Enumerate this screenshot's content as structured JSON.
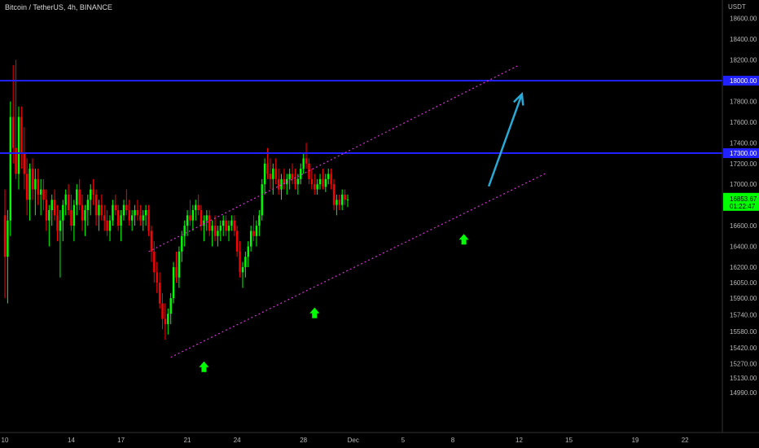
{
  "header": {
    "title": "Bitcoin / TetherUS, 4h, BINANCE"
  },
  "currency_label": "USDT",
  "chart_data": {
    "type": "candlestick",
    "title": "Bitcoin / TetherUS, 4h, BINANCE",
    "y_unit": "USDT",
    "ylim": [
      14900,
      18750
    ],
    "y_ticks": [
      18600,
      18400,
      18200,
      18000,
      17800,
      17600,
      17400,
      17200,
      17000,
      16800,
      16600,
      16400,
      16200,
      16050,
      15900,
      15740,
      15580,
      15420,
      15270,
      15130,
      14990
    ],
    "y_tick_labels": [
      "18600.00",
      "18400.00",
      "18200.00",
      "18000.00",
      "17800.00",
      "17600.00",
      "17400.00",
      "17200.00",
      "17000.00",
      "16800.00",
      "16600.00",
      "16400.00",
      "16200.00",
      "16050.00",
      "15900.00",
      "15740.00",
      "15580.00",
      "15420.00",
      "15270.00",
      "15130.00",
      "14990.00"
    ],
    "x_tick_labels": [
      "10",
      "14",
      "17",
      "21",
      "24",
      "28",
      "Dec",
      "5",
      "8",
      "12",
      "15",
      "19",
      "22"
    ],
    "x_tick_index": [
      0,
      24,
      42,
      66,
      84,
      108,
      126,
      144,
      162,
      186,
      204,
      228,
      246
    ],
    "x_range": [
      0,
      252
    ],
    "horizontal_levels": [
      {
        "price": 18000,
        "label": "18000.00",
        "color": "#2121ff"
      },
      {
        "price": 17300,
        "label": "17300.00",
        "color": "#2121ff"
      }
    ],
    "last_price": {
      "value": 16853.67,
      "label": "16853.67",
      "countdown": "01:22:47",
      "color": "#00ff00"
    },
    "channel": {
      "color": "#d633d6",
      "upper": [
        [
          52,
          16350
        ],
        [
          186,
          18150
        ]
      ],
      "lower": [
        [
          60,
          15330
        ],
        [
          196,
          17110
        ]
      ]
    },
    "projection_arrow": {
      "from": [
        175,
        16980
      ],
      "to": [
        187,
        17870
      ],
      "color": "#29a9d6"
    },
    "support_markers": {
      "index": [
        72,
        112,
        166
      ],
      "price": [
        15400,
        15920,
        16630
      ],
      "color": "#00ff00"
    },
    "candle_colors": {
      "up": "#00ff00",
      "down": "#ff0000"
    },
    "candles": [
      [
        16700,
        16950,
        15900,
        16300
      ],
      [
        16300,
        16750,
        15850,
        16650
      ],
      [
        16650,
        17800,
        16500,
        17650
      ],
      [
        17650,
        18150,
        17200,
        17350
      ],
      [
        17350,
        18200,
        17050,
        17100
      ],
      [
        17100,
        17750,
        16950,
        17650
      ],
      [
        17650,
        17750,
        17150,
        17300
      ],
      [
        17300,
        17550,
        16950,
        17100
      ],
      [
        17100,
        17250,
        16700,
        16850
      ],
      [
        16850,
        17200,
        16650,
        17150
      ],
      [
        17150,
        17250,
        16850,
        16950
      ],
      [
        16950,
        17150,
        16700,
        17050
      ],
      [
        17050,
        17150,
        16800,
        16900
      ],
      [
        16900,
        17050,
        16700,
        16950
      ],
      [
        16950,
        17050,
        16750,
        16850
      ],
      [
        16850,
        16950,
        16550,
        16650
      ],
      [
        16650,
        16800,
        16400,
        16750
      ],
      [
        16750,
        16900,
        16600,
        16850
      ],
      [
        16850,
        16950,
        16650,
        16700
      ],
      [
        16700,
        16800,
        16450,
        16550
      ],
      [
        16550,
        16750,
        16100,
        16650
      ],
      [
        16650,
        16850,
        16450,
        16800
      ],
      [
        16800,
        16950,
        16700,
        16900
      ],
      [
        16900,
        17000,
        16700,
        16750
      ],
      [
        16750,
        16900,
        16550,
        16600
      ],
      [
        16600,
        16850,
        16450,
        16800
      ],
      [
        16800,
        17000,
        16700,
        16950
      ],
      [
        16950,
        17050,
        16750,
        16800
      ],
      [
        16800,
        16900,
        16550,
        16650
      ],
      [
        16650,
        16800,
        16500,
        16750
      ],
      [
        16750,
        16900,
        16600,
        16850
      ],
      [
        16850,
        17000,
        16700,
        16950
      ],
      [
        16950,
        17050,
        16800,
        16900
      ],
      [
        16900,
        16950,
        16600,
        16700
      ],
      [
        16700,
        16850,
        16550,
        16800
      ],
      [
        16800,
        16900,
        16650,
        16700
      ],
      [
        16700,
        16800,
        16550,
        16650
      ],
      [
        16650,
        16750,
        16500,
        16550
      ],
      [
        16550,
        16700,
        16450,
        16650
      ],
      [
        16650,
        16850,
        16600,
        16800
      ],
      [
        16800,
        16900,
        16700,
        16750
      ],
      [
        16750,
        16800,
        16550,
        16600
      ],
      [
        16600,
        16750,
        16450,
        16700
      ],
      [
        16700,
        16850,
        16650,
        16800
      ],
      [
        16800,
        16950,
        16700,
        16750
      ],
      [
        16750,
        16850,
        16600,
        16650
      ],
      [
        16650,
        16750,
        16550,
        16700
      ],
      [
        16700,
        16800,
        16600,
        16750
      ],
      [
        16750,
        16850,
        16650,
        16700
      ],
      [
        16700,
        16800,
        16600,
        16650
      ],
      [
        16650,
        16750,
        16550,
        16700
      ],
      [
        16700,
        16800,
        16600,
        16750
      ],
      [
        16750,
        16800,
        16500,
        16550
      ],
      [
        16550,
        16600,
        16250,
        16350
      ],
      [
        16350,
        16450,
        16050,
        16150
      ],
      [
        16150,
        16250,
        15950,
        16050
      ],
      [
        16050,
        16150,
        15800,
        15850
      ],
      [
        15850,
        15950,
        15600,
        15700
      ],
      [
        15700,
        15850,
        15500,
        15650
      ],
      [
        15650,
        15800,
        15550,
        15750
      ],
      [
        15750,
        15950,
        15650,
        15900
      ],
      [
        15900,
        16250,
        15850,
        16200
      ],
      [
        16200,
        16350,
        16050,
        16100
      ],
      [
        16100,
        16400,
        16000,
        16350
      ],
      [
        16350,
        16550,
        16250,
        16500
      ],
      [
        16500,
        16650,
        16400,
        16600
      ],
      [
        16600,
        16750,
        16500,
        16700
      ],
      [
        16700,
        16850,
        16600,
        16650
      ],
      [
        16650,
        16800,
        16550,
        16750
      ],
      [
        16750,
        16850,
        16650,
        16800
      ],
      [
        16800,
        16900,
        16700,
        16750
      ],
      [
        16750,
        16800,
        16550,
        16600
      ],
      [
        16600,
        16700,
        16450,
        16650
      ],
      [
        16650,
        16750,
        16550,
        16700
      ],
      [
        16700,
        16750,
        16500,
        16550
      ],
      [
        16550,
        16650,
        16400,
        16600
      ],
      [
        16600,
        16700,
        16450,
        16500
      ],
      [
        16500,
        16600,
        16400,
        16550
      ],
      [
        16550,
        16650,
        16450,
        16600
      ],
      [
        16600,
        16700,
        16500,
        16650
      ],
      [
        16650,
        16700,
        16500,
        16550
      ],
      [
        16550,
        16650,
        16450,
        16600
      ],
      [
        16600,
        16700,
        16550,
        16650
      ],
      [
        16650,
        16700,
        16500,
        16550
      ],
      [
        16550,
        16600,
        16300,
        16350
      ],
      [
        16350,
        16450,
        16100,
        16150
      ],
      [
        16150,
        16250,
        16000,
        16200
      ],
      [
        16200,
        16350,
        16100,
        16300
      ],
      [
        16300,
        16450,
        16200,
        16400
      ],
      [
        16400,
        16600,
        16350,
        16550
      ],
      [
        16550,
        16700,
        16450,
        16500
      ],
      [
        16500,
        16650,
        16400,
        16600
      ],
      [
        16600,
        16750,
        16500,
        16700
      ],
      [
        16700,
        17050,
        16650,
        17000
      ],
      [
        17000,
        17250,
        16900,
        17200
      ],
      [
        17200,
        17350,
        17050,
        17100
      ],
      [
        17100,
        17250,
        16950,
        17050
      ],
      [
        17050,
        17200,
        16900,
        17150
      ],
      [
        17150,
        17250,
        17000,
        17050
      ],
      [
        17050,
        17150,
        16900,
        16950
      ],
      [
        16950,
        17100,
        16850,
        17050
      ],
      [
        17050,
        17150,
        16950,
        17000
      ],
      [
        17000,
        17100,
        16900,
        17050
      ],
      [
        17050,
        17150,
        16950,
        17100
      ],
      [
        17100,
        17200,
        17000,
        17050
      ],
      [
        17050,
        17150,
        16950,
        17000
      ],
      [
        17000,
        17100,
        16900,
        17050
      ],
      [
        17050,
        17200,
        17000,
        17150
      ],
      [
        17150,
        17300,
        17100,
        17250
      ],
      [
        17250,
        17400,
        17150,
        17200
      ],
      [
        17200,
        17250,
        17000,
        17050
      ],
      [
        17050,
        17150,
        16950,
        17000
      ],
      [
        17000,
        17100,
        16900,
        16950
      ],
      [
        16950,
        17050,
        16900,
        17000
      ],
      [
        17000,
        17100,
        16950,
        17050
      ],
      [
        17050,
        17150,
        16950,
        16975
      ],
      [
        16975,
        17100,
        16925,
        17050
      ],
      [
        17050,
        17150,
        17000,
        17100
      ],
      [
        17100,
        17150,
        16950,
        17000
      ],
      [
        17000,
        17050,
        16750,
        16800
      ],
      [
        16800,
        16900,
        16700,
        16850
      ],
      [
        16850,
        16900,
        16750,
        16800
      ],
      [
        16800,
        16950,
        16750,
        16900
      ],
      [
        16900,
        16950,
        16800,
        16850
      ],
      [
        16850,
        16900,
        16780,
        16854
      ]
    ]
  }
}
